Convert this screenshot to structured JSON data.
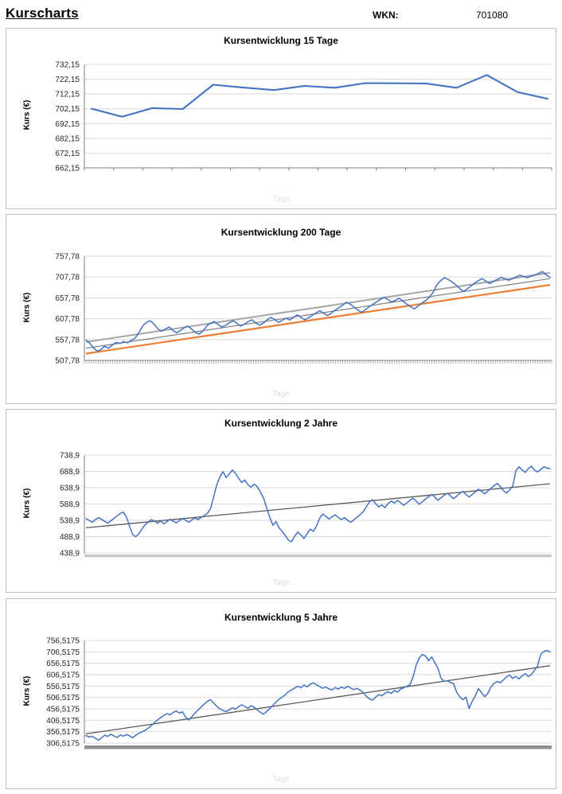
{
  "page": {
    "title": "Kurscharts",
    "wkn_label": "WKN:",
    "wkn_value": "701080"
  },
  "colors": {
    "series_blue": "#4472C4",
    "trend_orange": "#ED7D31",
    "trend_gray_light": "#A6A6A6",
    "trend_gray_dark": "#7F7F7F",
    "trend_dark": "#595959",
    "grid": "#D9D9D9",
    "axis": "#7F7F7F",
    "tick_label": "#262626"
  },
  "chart_data": [
    {
      "type": "line",
      "title": "Kursentwicklung 15 Tage",
      "xlabel": "Tage",
      "ylabel": "Kurs (€)",
      "ylim": [
        662.15,
        732.15
      ],
      "grid": true,
      "legend": "none",
      "xaxis_style": "boundary-ticks",
      "ytick_values": [
        732.15,
        722.15,
        712.15,
        702.15,
        692.15,
        682.15,
        672.15,
        662.15
      ],
      "ytick_labels": [
        "732,15",
        "722,15",
        "712,15",
        "702,15",
        "692,15",
        "682,15",
        "672,15",
        "662,15"
      ],
      "series": [
        {
          "name": "Kurs",
          "color": "#4472C4",
          "width": 2.1,
          "values": [
            702.2,
            696.8,
            702.6,
            702.0,
            718.4,
            716.5,
            714.8,
            717.6,
            716.4,
            719.5,
            719.4,
            719.3,
            716.4,
            725.0,
            713.5,
            708.9
          ]
        }
      ],
      "trend_lines": []
    },
    {
      "type": "line",
      "title": "Kursentwicklung 200 Tage",
      "xlabel": "Tage",
      "ylabel": "Kurs (€)",
      "ylim": [
        507.78,
        757.78
      ],
      "grid": true,
      "legend": "none",
      "xaxis_style": "dense-ticks",
      "ytick_values": [
        757.78,
        707.78,
        657.78,
        607.78,
        557.78,
        507.78
      ],
      "ytick_labels": [
        "757,78",
        "707,78",
        "657,78",
        "607,78",
        "557,78",
        "507,78"
      ],
      "series": [
        {
          "name": "Kurs",
          "color": "#4472C4",
          "width": 1.5,
          "values": [
            557,
            549,
            538,
            530,
            534,
            542,
            537,
            545,
            551,
            548,
            553,
            550,
            556,
            561,
            574,
            590,
            599,
            603,
            595,
            584,
            578,
            583,
            588,
            580,
            574,
            579,
            586,
            590,
            583,
            575,
            571,
            578,
            590,
            597,
            601,
            594,
            588,
            592,
            598,
            603,
            597,
            590,
            595,
            601,
            605,
            598,
            592,
            597,
            605,
            611,
            606,
            599,
            604,
            609,
            605,
            611,
            617,
            611,
            605,
            610,
            616,
            622,
            627,
            621,
            615,
            621,
            628,
            634,
            640,
            647,
            643,
            636,
            629,
            623,
            629,
            636,
            642,
            648,
            654,
            659,
            654,
            648,
            652,
            657,
            650,
            643,
            637,
            631,
            638,
            645,
            651,
            659,
            671,
            689,
            699,
            706,
            702,
            696,
            689,
            681,
            673,
            679,
            686,
            693,
            699,
            704,
            698,
            692,
            697,
            702,
            707,
            704,
            700,
            704,
            708,
            712,
            709,
            706,
            710,
            713,
            717,
            721,
            713,
            707
          ]
        }
      ],
      "trend_lines": [
        {
          "name": "upper-channel",
          "from": 552,
          "to": 718,
          "color": "#A6A6A6",
          "width": 2.0
        },
        {
          "name": "mid-trend",
          "from": 537,
          "to": 704,
          "color": "#7F7F7F",
          "width": 1.2
        },
        {
          "name": "regression",
          "from": 524,
          "to": 689,
          "color": "#ED7D31",
          "width": 2.2
        }
      ]
    },
    {
      "type": "line",
      "title": "Kursentwicklung 2 Jahre",
      "xlabel": "Tage",
      "ylabel": "Kurs (€)",
      "ylim": [
        438.9,
        738.9
      ],
      "grid": true,
      "legend": "none",
      "xaxis_style": "light-band",
      "ytick_values": [
        738.9,
        688.9,
        638.9,
        588.9,
        538.9,
        488.9,
        438.9
      ],
      "ytick_labels": [
        "738,9",
        "688,9",
        "638,9",
        "588,9",
        "538,9",
        "488,9",
        "438,9"
      ],
      "series": [
        {
          "name": "Kurs",
          "color": "#4472C4",
          "width": 1.5,
          "values": [
            544,
            539,
            533,
            541,
            547,
            542,
            536,
            530,
            538,
            545,
            552,
            560,
            564,
            549,
            520,
            495,
            489,
            498,
            513,
            525,
            534,
            541,
            536,
            530,
            537,
            528,
            535,
            542,
            536,
            531,
            538,
            544,
            539,
            533,
            540,
            546,
            541,
            548,
            554,
            560,
            575,
            610,
            648,
            672,
            688,
            670,
            681,
            693,
            683,
            668,
            655,
            662,
            648,
            640,
            650,
            642,
            625,
            608,
            578,
            548,
            524,
            535,
            516,
            505,
            492,
            478,
            473,
            490,
            503,
            494,
            483,
            498,
            512,
            505,
            520,
            545,
            558,
            551,
            543,
            549,
            556,
            548,
            541,
            547,
            539,
            533,
            540,
            548,
            556,
            565,
            580,
            595,
            602,
            590,
            580,
            586,
            578,
            590,
            598,
            592,
            600,
            593,
            585,
            592,
            600,
            607,
            598,
            588,
            596,
            604,
            611,
            618,
            610,
            600,
            608,
            616,
            622,
            614,
            605,
            613,
            621,
            628,
            618,
            610,
            618,
            626,
            634,
            628,
            620,
            628,
            637,
            645,
            652,
            643,
            630,
            622,
            632,
            643,
            690,
            703,
            694,
            686,
            697,
            705,
            693,
            687,
            695,
            703,
            699,
            697
          ]
        }
      ],
      "trend_lines": [
        {
          "name": "trend",
          "from": 516,
          "to": 651,
          "color": "#595959",
          "width": 1.3
        }
      ]
    },
    {
      "type": "line",
      "title": "Kursentwicklung 5 Jahre",
      "xlabel": "Tage",
      "ylabel": "Kurs (€)",
      "ylim": [
        306.5175,
        756.5175
      ],
      "grid": true,
      "legend": "none",
      "xaxis_style": "dark-band",
      "ytick_values": [
        756.5175,
        706.5175,
        656.5175,
        606.5175,
        556.5175,
        506.5175,
        456.5175,
        406.5175,
        356.5175,
        306.5175
      ],
      "ytick_labels": [
        "756,5175",
        "706,5175",
        "656,5175",
        "606,5175",
        "556,5175",
        "506,5175",
        "456,5175",
        "406,5175",
        "356,5175",
        "306,5175"
      ],
      "series": [
        {
          "name": "Kurs",
          "color": "#4472C4",
          "width": 1.5,
          "values": [
            340,
            333,
            336,
            328,
            319,
            330,
            341,
            336,
            345,
            338,
            331,
            342,
            337,
            344,
            338,
            330,
            341,
            349,
            356,
            362,
            372,
            384,
            396,
            408,
            418,
            428,
            436,
            430,
            441,
            447,
            438,
            444,
            420,
            408,
            422,
            438,
            452,
            465,
            478,
            490,
            497,
            482,
            468,
            457,
            449,
            445,
            452,
            461,
            455,
            466,
            474,
            467,
            459,
            470,
            464,
            452,
            441,
            433,
            445,
            458,
            472,
            486,
            499,
            508,
            518,
            532,
            540,
            548,
            556,
            549,
            561,
            553,
            565,
            571,
            562,
            555,
            547,
            552,
            544,
            540,
            550,
            543,
            552,
            546,
            556,
            548,
            541,
            547,
            539,
            528,
            512,
            500,
            495,
            508,
            519,
            514,
            525,
            532,
            524,
            537,
            530,
            543,
            549,
            556,
            562,
            595,
            648,
            680,
            695,
            688,
            668,
            684,
            660,
            635,
            590,
            577,
            580,
            572,
            568,
            530,
            510,
            497,
            508,
            458,
            490,
            513,
            545,
            528,
            510,
            524,
            552,
            568,
            577,
            571,
            583,
            596,
            605,
            590,
            599,
            588,
            601,
            611,
            598,
            607,
            625,
            645,
            696,
            708,
            713,
            706
          ]
        }
      ],
      "trend_lines": [
        {
          "name": "trend",
          "from": 347,
          "to": 646,
          "color": "#595959",
          "width": 1.3
        }
      ]
    }
  ]
}
